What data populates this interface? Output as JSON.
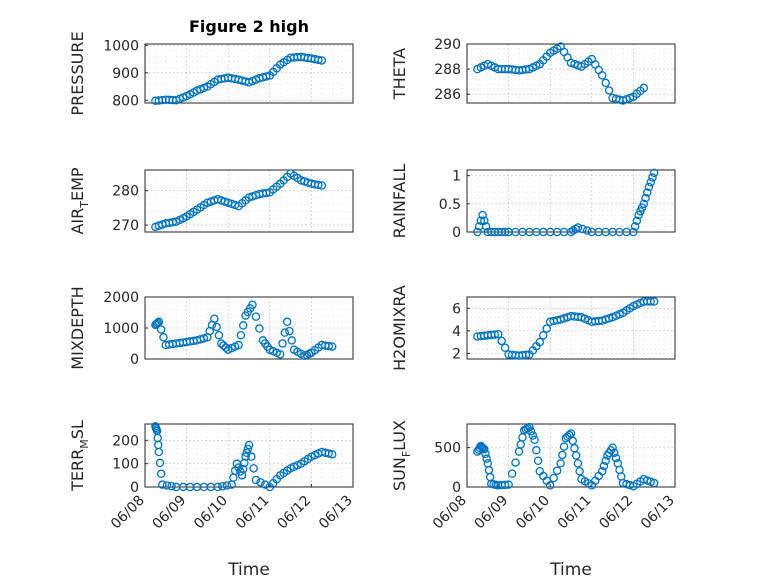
{
  "chart_data": [
    {
      "type": "scatter",
      "title": "Figure 2 high",
      "ylabel": "PRESSURE",
      "xlim": [
        "06/08",
        "06/13"
      ],
      "ylim": [
        790,
        1005
      ],
      "yticks": [
        800,
        900,
        1000
      ],
      "xticks": [],
      "xlabel": "",
      "series": [
        {
          "x": [
            "06/08 06:00",
            "06/08 12:00",
            "06/08 18:00",
            "06/09 00:00",
            "06/09 06:00",
            "06/09 12:00",
            "06/09 18:00",
            "06/10 00:00",
            "06/10 06:00",
            "06/10 12:00",
            "06/10 18:00",
            "06/11 00:00",
            "06/11 06:00",
            "06/11 12:00",
            "06/11 18:00",
            "06/12 00:00",
            "06/12 06:00"
          ],
          "y": [
            798,
            802,
            800,
            815,
            835,
            850,
            875,
            882,
            875,
            865,
            880,
            890,
            930,
            955,
            958,
            952,
            945
          ]
        }
      ]
    },
    {
      "type": "scatter",
      "ylabel": "THETA",
      "xlim": [
        "06/08",
        "06/13"
      ],
      "ylim": [
        285.3,
        290
      ],
      "yticks": [
        286,
        288,
        290
      ],
      "xticks": [],
      "xlabel": "",
      "series": [
        {
          "x": [
            "06/08 06:00",
            "06/08 12:00",
            "06/08 18:00",
            "06/09 00:00",
            "06/09 06:00",
            "06/09 12:00",
            "06/09 18:00",
            "06/10 00:00",
            "06/10 06:00",
            "06/10 12:00",
            "06/10 18:00",
            "06/11 00:00",
            "06/11 06:00",
            "06/11 12:00",
            "06/11 18:00",
            "06/12 00:00",
            "06/12 06:00"
          ],
          "y": [
            288.0,
            288.4,
            288.0,
            288.0,
            287.9,
            288.0,
            288.4,
            289.3,
            289.8,
            288.5,
            288.2,
            288.8,
            287.5,
            285.7,
            285.5,
            285.8,
            286.5
          ]
        }
      ]
    },
    {
      "type": "scatter",
      "ylabel": "AIR_TEMP",
      "xlim": [
        "06/08",
        "06/13"
      ],
      "ylim": [
        268,
        286
      ],
      "yticks": [
        270,
        280
      ],
      "xticks": [],
      "xlabel": "",
      "series": [
        {
          "x": [
            "06/08 06:00",
            "06/08 12:00",
            "06/08 18:00",
            "06/09 00:00",
            "06/09 06:00",
            "06/09 12:00",
            "06/09 18:00",
            "06/10 00:00",
            "06/10 06:00",
            "06/10 12:00",
            "06/10 18:00",
            "06/11 00:00",
            "06/11 06:00",
            "06/11 12:00",
            "06/11 18:00",
            "06/12 00:00",
            "06/12 06:00"
          ],
          "y": [
            269.5,
            270.5,
            271,
            272.5,
            274.5,
            276.5,
            277.5,
            276.5,
            275.5,
            278,
            279,
            279.5,
            282,
            285,
            283,
            282,
            281.5
          ]
        }
      ]
    },
    {
      "type": "scatter",
      "ylabel": "RAINFALL",
      "xlim": [
        "06/08",
        "06/13"
      ],
      "ylim": [
        0,
        1.1
      ],
      "yticks": [
        0,
        0.5,
        1
      ],
      "xticks": [],
      "xlabel": "",
      "series": [
        {
          "x": [
            "06/08 06:00",
            "06/08 09:00",
            "06/08 12:00",
            "06/08 18:00",
            "06/09 00:00",
            "06/09 12:00",
            "06/10 00:00",
            "06/10 12:00",
            "06/10 16:00",
            "06/11 00:00",
            "06/11 12:00",
            "06/12 00:00",
            "06/12 03:00",
            "06/12 06:00",
            "06/12 09:00",
            "06/12 12:00"
          ],
          "y": [
            0,
            0.3,
            0,
            0,
            0,
            0,
            0,
            0,
            0.08,
            0,
            0,
            0,
            0.3,
            0.5,
            0.8,
            1.05
          ]
        }
      ]
    },
    {
      "type": "scatter",
      "ylabel": "MIXDEPTH",
      "xlim": [
        "06/08",
        "06/13"
      ],
      "ylim": [
        0,
        2000
      ],
      "yticks": [
        0,
        1000,
        2000
      ],
      "xticks": [],
      "xlabel": "",
      "series": [
        {
          "x": [
            "06/08 06:00",
            "06/08 08:00",
            "06/08 12:00",
            "06/08 18:00",
            "06/09 00:00",
            "06/09 06:00",
            "06/09 12:00",
            "06/09 16:00",
            "06/09 20:00",
            "06/10 00:00",
            "06/10 06:00",
            "06/10 10:00",
            "06/10 14:00",
            "06/10 20:00",
            "06/11 00:00",
            "06/11 06:00",
            "06/11 10:00",
            "06/11 14:00",
            "06/11 20:00",
            "06/12 00:00",
            "06/12 06:00",
            "06/12 12:00"
          ],
          "y": [
            1100,
            1200,
            450,
            500,
            550,
            600,
            700,
            1300,
            500,
            300,
            450,
            1400,
            1750,
            600,
            300,
            150,
            1200,
            300,
            100,
            200,
            450,
            400
          ]
        }
      ]
    },
    {
      "type": "scatter",
      "ylabel": "H2OMIXRA",
      "xlim": [
        "06/08",
        "06/13"
      ],
      "ylim": [
        1.5,
        7
      ],
      "yticks": [
        2,
        4,
        6
      ],
      "xticks": [],
      "xlabel": "",
      "series": [
        {
          "x": [
            "06/08 06:00",
            "06/08 12:00",
            "06/08 18:00",
            "06/09 00:00",
            "06/09 06:00",
            "06/09 12:00",
            "06/09 18:00",
            "06/10 00:00",
            "06/10 06:00",
            "06/10 12:00",
            "06/10 18:00",
            "06/11 00:00",
            "06/11 06:00",
            "06/11 12:00",
            "06/11 18:00",
            "06/12 00:00",
            "06/12 06:00",
            "06/12 12:00"
          ],
          "y": [
            3.5,
            3.6,
            3.7,
            1.9,
            1.8,
            1.9,
            3.0,
            4.8,
            5.0,
            5.3,
            5.2,
            4.8,
            4.9,
            5.2,
            5.6,
            6.2,
            6.6,
            6.6
          ]
        }
      ]
    },
    {
      "type": "scatter",
      "ylabel": "TERR_MSL",
      "xlim": [
        "06/08",
        "06/13"
      ],
      "ylim": [
        0,
        270
      ],
      "yticks": [
        0,
        100,
        200
      ],
      "xticklabels": [
        "06/08",
        "06/09",
        "06/10",
        "06/11",
        "06/12",
        "06/13"
      ],
      "xlabel": "Time",
      "series": [
        {
          "x": [
            "06/08 06:00",
            "06/08 07:00",
            "06/08 08:00",
            "06/08 10:00",
            "06/08 18:00",
            "06/09 06:00",
            "06/09 18:00",
            "06/10 02:00",
            "06/10 05:00",
            "06/10 08:00",
            "06/10 10:00",
            "06/10 12:00",
            "06/10 16:00",
            "06/11 00:00",
            "06/11 06:00",
            "06/11 12:00",
            "06/11 18:00",
            "06/12 00:00",
            "06/12 06:00",
            "06/12 12:00"
          ],
          "y": [
            260,
            240,
            150,
            10,
            0,
            0,
            0,
            10,
            100,
            50,
            130,
            180,
            30,
            0,
            50,
            80,
            100,
            130,
            150,
            140
          ]
        }
      ]
    },
    {
      "type": "scatter",
      "ylabel": "SUN_FLUX",
      "xlim": [
        "06/08",
        "06/13"
      ],
      "ylim": [
        0,
        800
      ],
      "yticks": [
        0,
        500
      ],
      "xticklabels": [
        "06/08",
        "06/09",
        "06/10",
        "06/11",
        "06/12",
        "06/13"
      ],
      "xlabel": "Time",
      "series": [
        {
          "x": [
            "06/08 06:00",
            "06/08 08:00",
            "06/08 10:00",
            "06/08 12:00",
            "06/08 14:00",
            "06/08 18:00",
            "06/09 00:00",
            "06/09 06:00",
            "06/09 09:00",
            "06/09 12:00",
            "06/09 15:00",
            "06/09 18:00",
            "06/10 00:00",
            "06/10 06:00",
            "06/10 09:00",
            "06/10 12:00",
            "06/10 15:00",
            "06/10 18:00",
            "06/11 00:00",
            "06/11 06:00",
            "06/11 09:00",
            "06/11 12:00",
            "06/11 15:00",
            "06/11 18:00",
            "06/12 00:00",
            "06/12 06:00",
            "06/12 12:00"
          ],
          "y": [
            450,
            520,
            480,
            300,
            40,
            20,
            30,
            450,
            720,
            760,
            600,
            200,
            20,
            300,
            620,
            680,
            400,
            100,
            20,
            200,
            400,
            500,
            300,
            50,
            10,
            100,
            50
          ]
        }
      ]
    }
  ]
}
